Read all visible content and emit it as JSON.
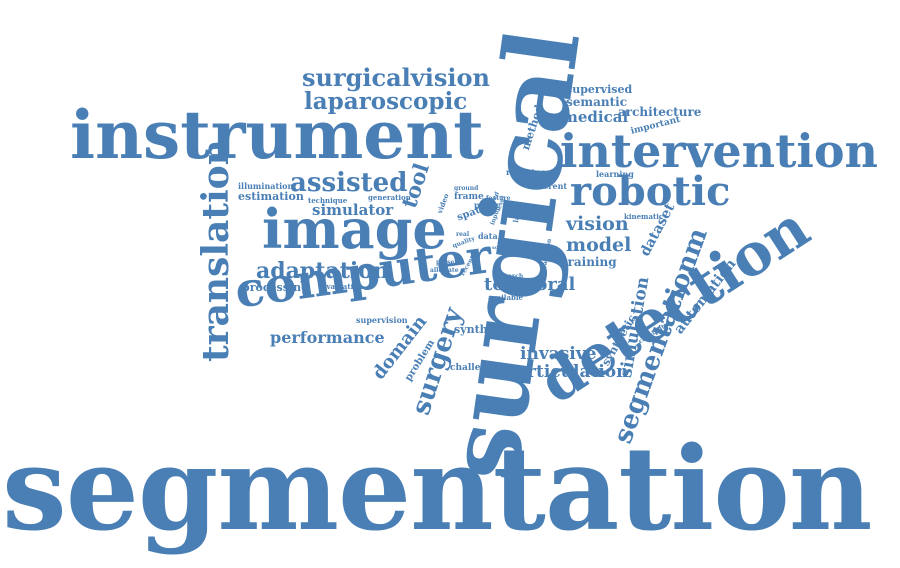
{
  "theme": {
    "word_color": "#4a7fb5",
    "background": "#ffffff"
  },
  "words": {
    "segmentation": "segmentation",
    "surgical": "surgical",
    "instrument": "instrument",
    "intervention": "intervention",
    "detection": "detection",
    "image": "image",
    "computer": "computer",
    "robotic": "robotic",
    "translation": "translation",
    "surgicalvision": "surgicalvision",
    "laparoscopic": "laparoscopic",
    "assisted": "assisted",
    "adaptation": "adaptation",
    "segmentationm": "segmentationm",
    "surgery": "surgery",
    "domain": "domain",
    "performance": "performance",
    "simulator": "simulator",
    "vision": "vision",
    "model": "model",
    "temporal": "temporal",
    "invasive": "invasive",
    "articulation": "articulation",
    "simulation": "simulation",
    "automation": "automation",
    "tool": "tool",
    "dataset": "dataset",
    "processing": "processing",
    "estimation": "estimation",
    "illumination": "illumination",
    "medical": "medical",
    "semantic": "semantic",
    "supervised": "supervised",
    "architecture": "architecture",
    "important": "important",
    "method": "method",
    "training": "training",
    "synthesis": "synthesis",
    "challenging": "challenging",
    "synthetic": "synthetic",
    "problem": "problem",
    "supervision": "supervision",
    "learning": "learning",
    "robustness": "robustness",
    "different": "different",
    "kinematic": "kinematic",
    "evaluation": "evaluation",
    "technique": "technique",
    "generation": "generation",
    "frame": "frame",
    "paper": "paper",
    "data": "data",
    "spatio": "spatio",
    "video": "video",
    "available": "available",
    "research": "research",
    "capability": "capability",
    "present": "present",
    "alleviate": "alleviate",
    "recent": "recent",
    "quality": "quality",
    "real": "real",
    "based": "based",
    "layer": "layer",
    "input": "input",
    "level": "level",
    "variation": "variation",
    "feature": "feature",
    "ground": "ground",
    "scene": "scene"
  }
}
